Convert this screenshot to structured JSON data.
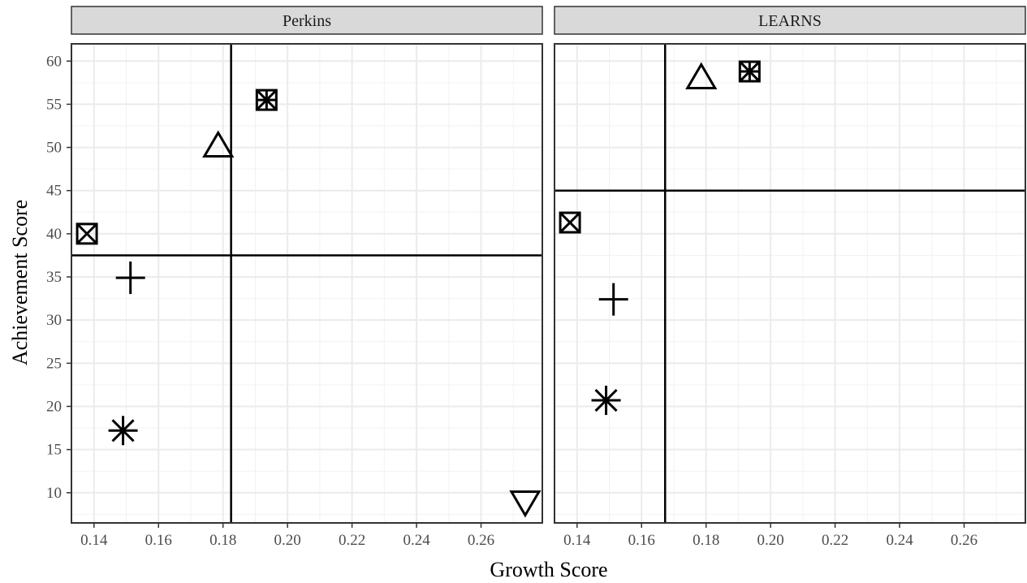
{
  "chart_data": {
    "type": "scatter",
    "xlabel": "Growth Score",
    "ylabel": "Achievement Score",
    "xlim": [
      0.133,
      0.279
    ],
    "ylim": [
      6.5,
      62.0
    ],
    "x_ticks": [
      0.14,
      0.16,
      0.18,
      0.2,
      0.22,
      0.24,
      0.26
    ],
    "x_tick_labels": [
      "0.14",
      "0.16",
      "0.18",
      "0.20",
      "0.22",
      "0.24",
      "0.26"
    ],
    "y_ticks": [
      10,
      15,
      20,
      25,
      30,
      35,
      40,
      45,
      50,
      55,
      60
    ],
    "y_tick_labels": [
      "10",
      "15",
      "20",
      "25",
      "30",
      "35",
      "40",
      "45",
      "50",
      "55",
      "60"
    ],
    "grid": true,
    "legend": "none",
    "panels": [
      {
        "title": "Perkins",
        "vline": 0.1825,
        "hline": 37.5,
        "points": [
          {
            "shape": "square-cross",
            "x": 0.1378,
            "y": 40.0
          },
          {
            "shape": "plus",
            "x": 0.1513,
            "y": 34.9
          },
          {
            "shape": "asterisk",
            "x": 0.149,
            "y": 17.2
          },
          {
            "shape": "triangle-up",
            "x": 0.1785,
            "y": 50.2
          },
          {
            "shape": "square-asterisk",
            "x": 0.1935,
            "y": 55.5
          },
          {
            "shape": "triangle-down",
            "x": 0.2737,
            "y": 8.9
          }
        ]
      },
      {
        "title": "LEARNS",
        "vline": 0.1673,
        "hline": 45.0,
        "points": [
          {
            "shape": "square-cross",
            "x": 0.1378,
            "y": 41.3
          },
          {
            "shape": "plus",
            "x": 0.1513,
            "y": 32.4
          },
          {
            "shape": "asterisk",
            "x": 0.149,
            "y": 20.7
          },
          {
            "shape": "triangle-up",
            "x": 0.1785,
            "y": 58.1
          },
          {
            "shape": "square-asterisk",
            "x": 0.1935,
            "y": 58.8
          }
        ]
      }
    ]
  }
}
